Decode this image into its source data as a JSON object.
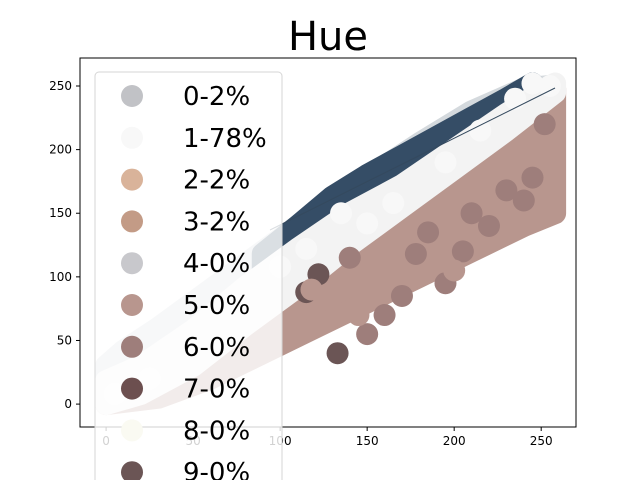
{
  "chart_data": {
    "type": "scatter",
    "title": "Hue",
    "xlabel": "",
    "ylabel": "",
    "xlim": [
      -15,
      270
    ],
    "ylim": [
      -18,
      272
    ],
    "xticks": [
      0,
      50,
      100,
      150,
      200,
      250
    ],
    "yticks": [
      0,
      50,
      100,
      150,
      200,
      250
    ],
    "grid": false,
    "legend_position": "upper-left",
    "series": [
      {
        "name": "0-2%",
        "color": "#c1c2c6"
      },
      {
        "name": "1-78%",
        "color": "#f8f8f8"
      },
      {
        "name": "2-2%",
        "color": "#d9b39a"
      },
      {
        "name": "3-2%",
        "color": "#c39b86"
      },
      {
        "name": "4-0%",
        "color": "#c8c8cc"
      },
      {
        "name": "5-0%",
        "color": "#b8968e"
      },
      {
        "name": "6-0%",
        "color": "#9e7e7b"
      },
      {
        "name": "7-0%",
        "color": "#6c4f4f"
      },
      {
        "name": "8-0%",
        "color": "#fafaf2"
      },
      {
        "name": "9-0%",
        "color": "#6b5555"
      }
    ],
    "bands": [
      {
        "series": "0-2%",
        "color": "#d4d9dd",
        "x": [
          0,
          10,
          30,
          60,
          90,
          120,
          150,
          180,
          210,
          240,
          255
        ],
        "upper": [
          30,
          42,
          60,
          90,
          120,
          150,
          178,
          205,
          230,
          248,
          250
        ],
        "lower": [
          0,
          8,
          25,
          55,
          85,
          115,
          140,
          170,
          200,
          225,
          240
        ]
      },
      {
        "series": "blue",
        "color": "#354d66",
        "x": [
          90,
          110,
          130,
          150,
          170,
          190,
          210,
          230,
          245
        ],
        "upper": [
          118,
          140,
          163,
          180,
          195,
          210,
          225,
          240,
          252
        ],
        "lower": [
          105,
          118,
          140,
          158,
          180,
          198,
          215,
          232,
          247
        ]
      },
      {
        "series": "3-2%",
        "color": "#b8968e",
        "x": [
          0,
          30,
          60,
          90,
          120,
          150,
          180,
          210,
          240,
          258
        ],
        "upper": [
          5,
          22,
          50,
          80,
          110,
          140,
          170,
          200,
          228,
          248
        ],
        "lower": [
          0,
          5,
          20,
          40,
          60,
          80,
          100,
          120,
          140,
          150
        ]
      },
      {
        "series": "1-78%",
        "color": "#f3f3f3",
        "x": [
          0,
          20,
          50,
          80,
          110,
          140,
          170,
          200,
          230,
          258
        ],
        "upper": [
          18,
          30,
          58,
          92,
          122,
          150,
          172,
          200,
          228,
          252
        ],
        "lower": [
          0,
          8,
          30,
          62,
          92,
          125,
          155,
          185,
          215,
          245
        ]
      }
    ],
    "points": [
      {
        "series": "9-0%",
        "x": 133,
        "y": 40
      },
      {
        "series": "9-0%",
        "x": 115,
        "y": 88
      },
      {
        "series": "9-0%",
        "x": 122,
        "y": 102
      },
      {
        "series": "6-0%",
        "x": 178,
        "y": 118
      },
      {
        "series": "6-0%",
        "x": 195,
        "y": 95
      },
      {
        "series": "6-0%",
        "x": 210,
        "y": 150
      },
      {
        "series": "6-0%",
        "x": 230,
        "y": 168
      },
      {
        "series": "6-0%",
        "x": 245,
        "y": 178
      },
      {
        "series": "6-0%",
        "x": 160,
        "y": 70
      },
      {
        "series": "6-0%",
        "x": 150,
        "y": 55
      },
      {
        "series": "6-0%",
        "x": 170,
        "y": 85
      },
      {
        "series": "6-0%",
        "x": 185,
        "y": 135
      },
      {
        "series": "6-0%",
        "x": 220,
        "y": 140
      },
      {
        "series": "6-0%",
        "x": 240,
        "y": 160
      },
      {
        "series": "6-0%",
        "x": 252,
        "y": 220
      },
      {
        "series": "6-0%",
        "x": 140,
        "y": 115
      },
      {
        "series": "6-0%",
        "x": 205,
        "y": 120
      },
      {
        "series": "5-0%",
        "x": 108,
        "y": 65
      },
      {
        "series": "5-0%",
        "x": 118,
        "y": 90
      },
      {
        "series": "5-0%",
        "x": 145,
        "y": 70
      },
      {
        "series": "5-0%",
        "x": 200,
        "y": 105
      },
      {
        "series": "1-78%",
        "x": 100,
        "y": 108
      },
      {
        "series": "1-78%",
        "x": 115,
        "y": 122
      },
      {
        "series": "1-78%",
        "x": 135,
        "y": 150
      },
      {
        "series": "1-78%",
        "x": 150,
        "y": 142
      },
      {
        "series": "1-78%",
        "x": 165,
        "y": 158
      },
      {
        "series": "1-78%",
        "x": 195,
        "y": 190
      },
      {
        "series": "1-78%",
        "x": 215,
        "y": 215
      },
      {
        "series": "1-78%",
        "x": 235,
        "y": 240
      },
      {
        "series": "1-78%",
        "x": 245,
        "y": 252
      },
      {
        "series": "1-78%",
        "x": 255,
        "y": 250
      },
      {
        "series": "1-78%",
        "x": 25,
        "y": 20
      },
      {
        "series": "1-78%",
        "x": 5,
        "y": 8
      }
    ]
  }
}
